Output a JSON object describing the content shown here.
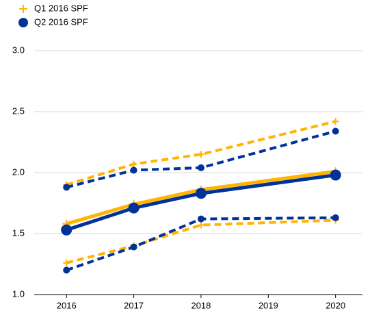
{
  "chart_data": {
    "type": "line",
    "x": [
      2016,
      2017,
      2018,
      2020
    ],
    "series": [
      {
        "name": "Q1 2016 SPF",
        "color": "#ffb400",
        "marker": "plus",
        "values": [
          1.58,
          1.74,
          1.86,
          2.01
        ],
        "upper": [
          1.9,
          2.07,
          2.15,
          2.42
        ],
        "lower": [
          1.26,
          1.4,
          1.57,
          1.61
        ]
      },
      {
        "name": "Q2 2016 SPF",
        "color": "#003299",
        "marker": "circle",
        "values": [
          1.53,
          1.71,
          1.83,
          1.98
        ],
        "upper": [
          1.88,
          2.02,
          2.04,
          2.34
        ],
        "lower": [
          1.2,
          1.39,
          1.62,
          1.63
        ]
      }
    ],
    "xlim": [
      2015.52,
      2020.4
    ],
    "xticks": [
      2016,
      2017,
      2018,
      2019,
      2020
    ],
    "ylim": [
      1.0,
      3.0
    ],
    "yticks": [
      {
        "value": 1.0,
        "label": "1.0"
      },
      {
        "value": 1.5,
        "label": "1.5"
      },
      {
        "value": 2.0,
        "label": "2.0"
      },
      {
        "value": 2.5,
        "label": "2.5"
      },
      {
        "value": 3.0,
        "label": "3.0"
      }
    ],
    "grid": true,
    "legend": "top-left"
  }
}
